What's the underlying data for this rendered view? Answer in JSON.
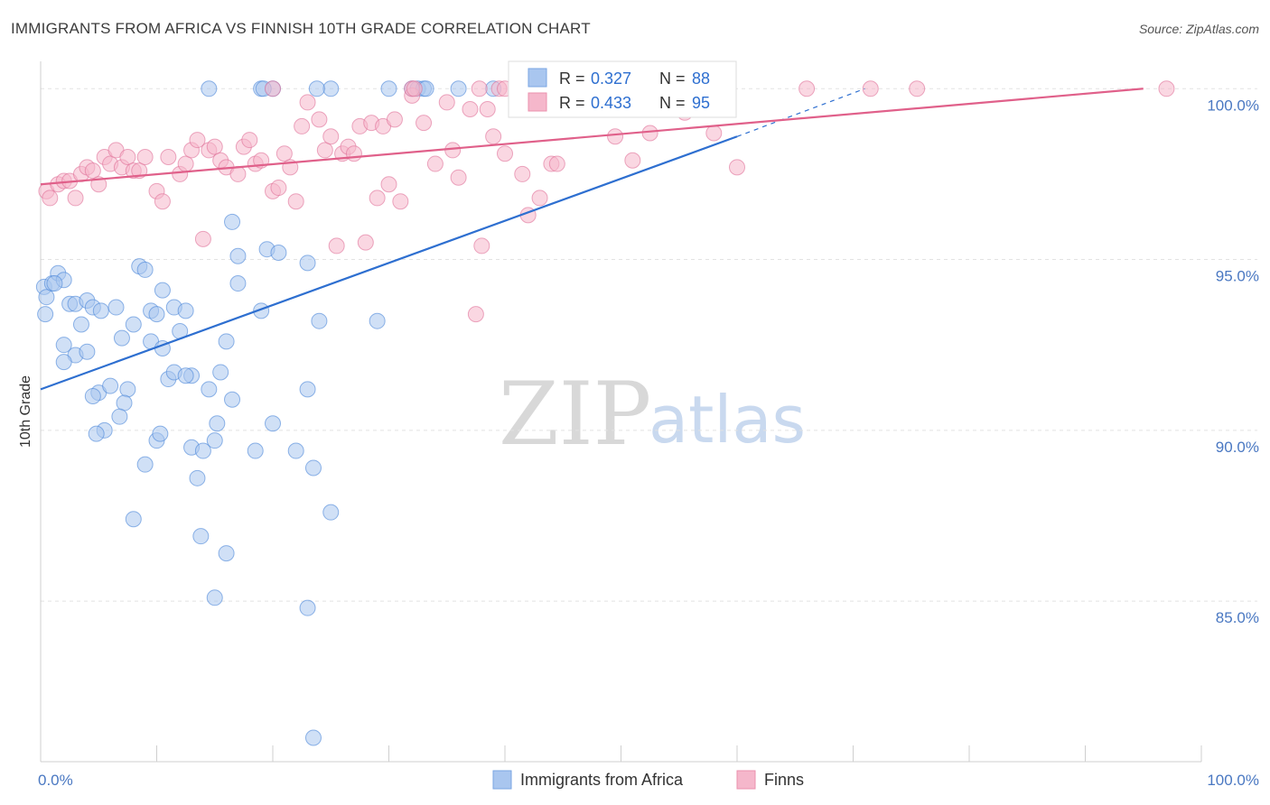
{
  "title": "IMMIGRANTS FROM AFRICA VS FINNISH 10TH GRADE CORRELATION CHART",
  "source": "Source: ZipAtlas.com",
  "watermark": {
    "part1": "ZIP",
    "part2": "atlas"
  },
  "colors": {
    "blue": "#4a86d8",
    "blue_fill": "#a9c6ef",
    "pink": "#e07098",
    "pink_fill": "#f5b7cb",
    "blue_line": "#2e6fd0",
    "pink_line": "#e0608a"
  },
  "legend": {
    "rows": [
      {
        "r_label": "R =",
        "r_value": "0.327",
        "n_label": "N =",
        "n_value": "88"
      },
      {
        "r_label": "R =",
        "r_value": "0.433",
        "n_label": "N =",
        "n_value": "95"
      }
    ]
  },
  "bottom_legend": {
    "series1": "Immigrants from Africa",
    "series2": "Finns"
  },
  "chart_data": {
    "type": "scatter",
    "title": "IMMIGRANTS FROM AFRICA VS FINNISH 10TH GRADE CORRELATION CHART",
    "xlabel": "",
    "ylabel": "10th Grade",
    "xlim": [
      0,
      100
    ],
    "ylim": [
      80.3,
      100.8
    ],
    "x_tick_labels": {
      "left": "0.0%",
      "right": "100.0%"
    },
    "y_ticks": [
      {
        "value": 100,
        "label": "100.0%"
      },
      {
        "value": 95,
        "label": "95.0%"
      },
      {
        "value": 90,
        "label": "90.0%"
      },
      {
        "value": 85,
        "label": "85.0%"
      }
    ],
    "series": [
      {
        "name": "Immigrants from Africa",
        "color": "#4a86d8",
        "trend": {
          "x0": 0,
          "y0": 91.2,
          "x1": 60,
          "y1": 98.6,
          "dashed_to_x": 71,
          "dashed_to_y": 100.0
        },
        "points": [
          [
            0.3,
            94.2
          ],
          [
            0.5,
            93.9
          ],
          [
            0.4,
            93.4
          ],
          [
            1.0,
            94.3
          ],
          [
            1.5,
            94.6
          ],
          [
            2.0,
            94.4
          ],
          [
            1.2,
            94.3
          ],
          [
            2.5,
            93.7
          ],
          [
            3.0,
            93.7
          ],
          [
            3.5,
            93.1
          ],
          [
            4.0,
            93.8
          ],
          [
            4.5,
            93.6
          ],
          [
            5.2,
            93.5
          ],
          [
            6.5,
            93.6
          ],
          [
            7.0,
            92.7
          ],
          [
            8.0,
            93.1
          ],
          [
            8.5,
            94.8
          ],
          [
            9.0,
            94.7
          ],
          [
            9.5,
            93.5
          ],
          [
            10.0,
            93.4
          ],
          [
            10.5,
            94.1
          ],
          [
            11.5,
            93.6
          ],
          [
            12.0,
            92.9
          ],
          [
            12.5,
            93.5
          ],
          [
            2.0,
            92.5
          ],
          [
            3.0,
            92.2
          ],
          [
            4.0,
            92.3
          ],
          [
            2.0,
            92.0
          ],
          [
            9.5,
            92.6
          ],
          [
            10.5,
            92.4
          ],
          [
            11.0,
            91.5
          ],
          [
            11.5,
            91.7
          ],
          [
            13.0,
            91.6
          ],
          [
            12.5,
            91.6
          ],
          [
            15.5,
            91.7
          ],
          [
            14.5,
            91.2
          ],
          [
            16.0,
            92.6
          ],
          [
            5.0,
            91.1
          ],
          [
            6.0,
            91.3
          ],
          [
            7.5,
            91.2
          ],
          [
            7.2,
            90.8
          ],
          [
            4.5,
            91.0
          ],
          [
            6.8,
            90.4
          ],
          [
            5.5,
            90.0
          ],
          [
            4.8,
            89.9
          ],
          [
            10.0,
            89.7
          ],
          [
            10.3,
            89.9
          ],
          [
            13.0,
            89.5
          ],
          [
            14.0,
            89.4
          ],
          [
            15.0,
            89.7
          ],
          [
            15.2,
            90.2
          ],
          [
            16.5,
            90.9
          ],
          [
            9.0,
            89.0
          ],
          [
            13.5,
            88.6
          ],
          [
            18.5,
            89.4
          ],
          [
            22.0,
            89.4
          ],
          [
            23.5,
            88.9
          ],
          [
            25.0,
            87.6
          ],
          [
            8.0,
            87.4
          ],
          [
            13.8,
            86.9
          ],
          [
            16.0,
            86.4
          ],
          [
            15.0,
            85.1
          ],
          [
            23.0,
            84.8
          ],
          [
            23.5,
            81.0
          ],
          [
            16.5,
            96.1
          ],
          [
            17.0,
            95.1
          ],
          [
            19.5,
            95.3
          ],
          [
            20.5,
            95.2
          ],
          [
            23.0,
            94.9
          ],
          [
            17.0,
            94.3
          ],
          [
            19.0,
            93.5
          ],
          [
            24.0,
            93.2
          ],
          [
            29.0,
            93.2
          ],
          [
            23.0,
            91.2
          ],
          [
            20.0,
            90.2
          ],
          [
            14.5,
            100.0
          ],
          [
            19.0,
            100.0
          ],
          [
            20.0,
            100.0
          ],
          [
            25.0,
            100.0
          ],
          [
            30.0,
            100.0
          ],
          [
            32.0,
            100.0
          ],
          [
            32.5,
            100.0
          ],
          [
            33.0,
            100.0
          ],
          [
            36.0,
            100.0
          ],
          [
            39.0,
            100.0
          ],
          [
            19.2,
            100.0
          ],
          [
            23.8,
            100.0
          ],
          [
            33.2,
            100.0
          ]
        ]
      },
      {
        "name": "Finns",
        "color": "#e07098",
        "trend": {
          "x0": 0,
          "y0": 97.2,
          "x1": 95,
          "y1": 100.0
        },
        "points": [
          [
            0.5,
            97.0
          ],
          [
            0.8,
            96.8
          ],
          [
            1.5,
            97.2
          ],
          [
            2.0,
            97.3
          ],
          [
            2.5,
            97.3
          ],
          [
            3.0,
            96.8
          ],
          [
            3.5,
            97.5
          ],
          [
            4.0,
            97.7
          ],
          [
            4.5,
            97.6
          ],
          [
            5.0,
            97.2
          ],
          [
            5.5,
            98.0
          ],
          [
            6.0,
            97.8
          ],
          [
            6.5,
            98.2
          ],
          [
            7.0,
            97.7
          ],
          [
            7.5,
            98.0
          ],
          [
            8.0,
            97.6
          ],
          [
            8.5,
            97.6
          ],
          [
            9.0,
            98.0
          ],
          [
            10.0,
            97.0
          ],
          [
            10.5,
            96.7
          ],
          [
            11.0,
            98.0
          ],
          [
            12.0,
            97.5
          ],
          [
            12.5,
            97.8
          ],
          [
            13.0,
            98.2
          ],
          [
            13.5,
            98.5
          ],
          [
            14.5,
            98.2
          ],
          [
            15.0,
            98.3
          ],
          [
            15.5,
            97.9
          ],
          [
            16.0,
            97.7
          ],
          [
            17.0,
            97.5
          ],
          [
            17.5,
            98.3
          ],
          [
            18.0,
            98.5
          ],
          [
            18.5,
            97.8
          ],
          [
            19.0,
            97.9
          ],
          [
            20.0,
            97.0
          ],
          [
            20.5,
            97.1
          ],
          [
            21.0,
            98.1
          ],
          [
            21.5,
            97.7
          ],
          [
            22.0,
            96.7
          ],
          [
            22.5,
            98.9
          ],
          [
            23.0,
            99.6
          ],
          [
            24.0,
            99.1
          ],
          [
            24.5,
            98.2
          ],
          [
            25.0,
            98.6
          ],
          [
            26.0,
            98.1
          ],
          [
            26.5,
            98.3
          ],
          [
            27.0,
            98.1
          ],
          [
            27.5,
            98.9
          ],
          [
            28.5,
            99.0
          ],
          [
            29.0,
            96.8
          ],
          [
            29.5,
            98.9
          ],
          [
            30.0,
            97.2
          ],
          [
            30.5,
            99.1
          ],
          [
            31.0,
            96.7
          ],
          [
            32.0,
            99.8
          ],
          [
            33.0,
            99.0
          ],
          [
            34.0,
            97.8
          ],
          [
            35.0,
            99.6
          ],
          [
            35.5,
            98.2
          ],
          [
            36.0,
            97.4
          ],
          [
            37.0,
            99.4
          ],
          [
            38.0,
            95.4
          ],
          [
            38.5,
            99.4
          ],
          [
            39.0,
            98.6
          ],
          [
            39.5,
            100.0
          ],
          [
            40.0,
            98.1
          ],
          [
            41.5,
            97.5
          ],
          [
            42.0,
            96.3
          ],
          [
            43.0,
            96.8
          ],
          [
            44.0,
            97.8
          ],
          [
            44.5,
            97.8
          ],
          [
            45.0,
            100.0
          ],
          [
            49.5,
            98.6
          ],
          [
            50.0,
            100.0
          ],
          [
            51.0,
            97.9
          ],
          [
            52.5,
            98.7
          ],
          [
            55.5,
            99.3
          ],
          [
            58.0,
            98.7
          ],
          [
            60.0,
            97.7
          ],
          [
            14.0,
            95.6
          ],
          [
            25.5,
            95.4
          ],
          [
            28.0,
            95.5
          ],
          [
            37.5,
            93.4
          ],
          [
            20.0,
            100.0
          ],
          [
            32.0,
            100.0
          ],
          [
            40.0,
            100.0
          ],
          [
            47.0,
            100.0
          ],
          [
            49.0,
            100.0
          ],
          [
            59.0,
            100.0
          ],
          [
            66.0,
            100.0
          ],
          [
            71.5,
            100.0
          ],
          [
            75.5,
            100.0
          ],
          [
            97.0,
            100.0
          ],
          [
            37.8,
            100.0
          ],
          [
            32.2,
            100.0
          ]
        ]
      }
    ]
  }
}
